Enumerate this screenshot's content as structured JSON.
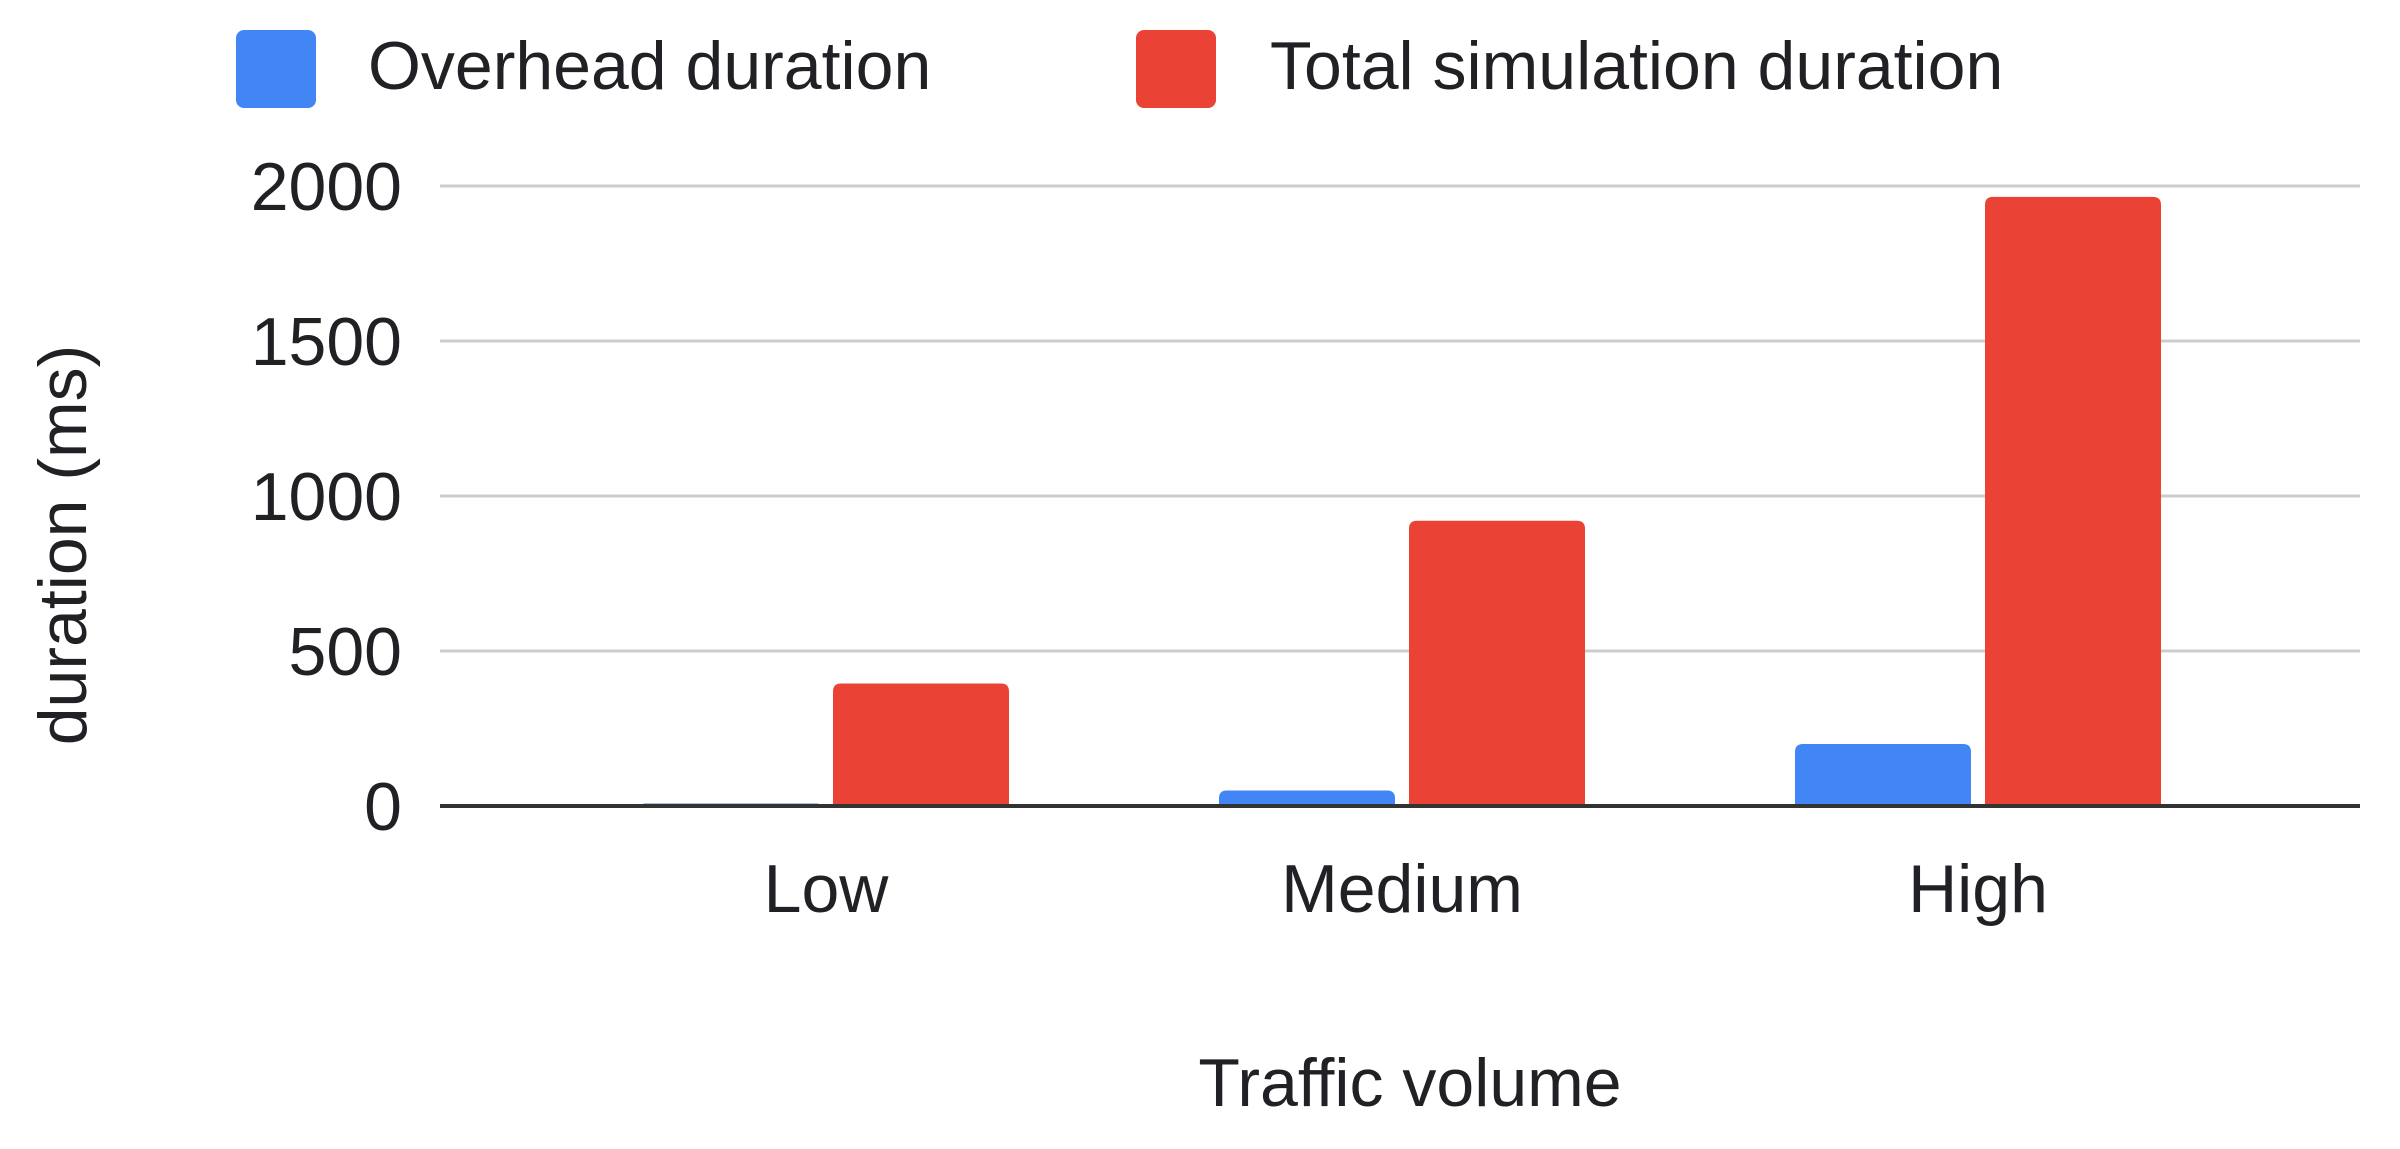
{
  "chart_data": {
    "type": "bar",
    "title": "",
    "xlabel": "Traffic volume",
    "ylabel": "duration (ms)",
    "categories": [
      "Low",
      "Medium",
      "High"
    ],
    "series": [
      {
        "name": "Overhead duration",
        "values": [
          8,
          50,
          200
        ],
        "color": "#4285f4"
      },
      {
        "name": "Total simulation duration",
        "values": [
          395,
          920,
          1965
        ],
        "color": "#ea4335"
      }
    ],
    "ylim": [
      0,
      2000
    ],
    "yticks": [
      0,
      500,
      1000,
      1500,
      2000
    ],
    "grid": true,
    "legend_position": "top"
  }
}
